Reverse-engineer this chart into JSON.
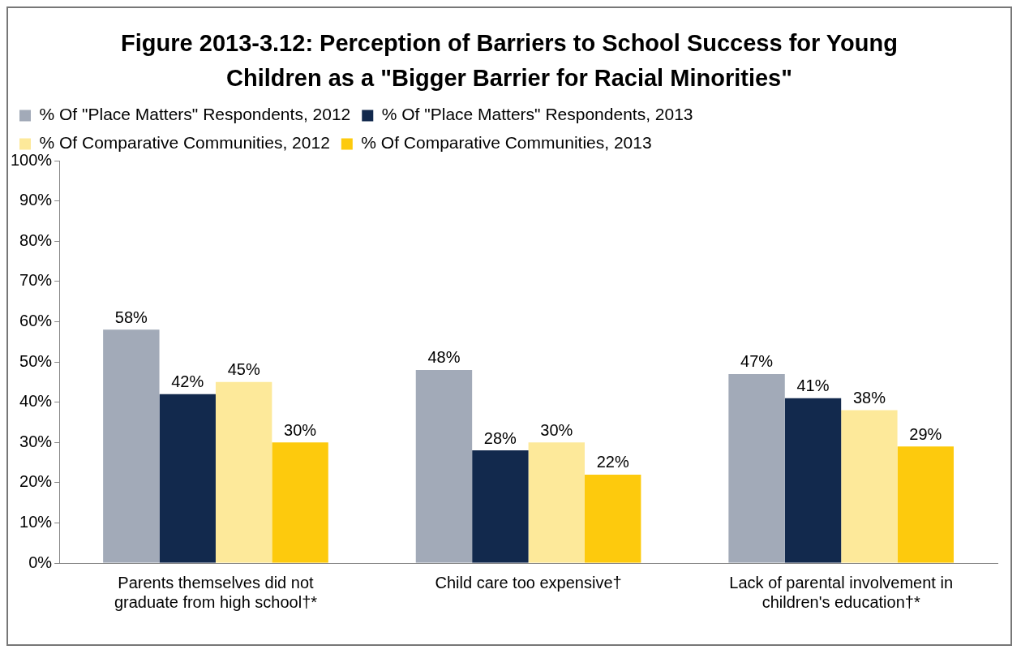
{
  "chart_data": {
    "type": "bar",
    "title": "Figure 2013-3.12: Perception of Barriers to School Success for Young Children as a \"Bigger Barrier for Racial Minorities\"",
    "categories": [
      "Parents themselves did not graduate from high school†*",
      "Child care too expensive†",
      "Lack of parental involvement in children's education†*"
    ],
    "series": [
      {
        "name": "% Of \"Place Matters\" Respondents, 2012",
        "color": "#a2aab8",
        "values": [
          58,
          48,
          47
        ],
        "value_labels": [
          "58%",
          "48%",
          "47%"
        ]
      },
      {
        "name": "% Of \"Place Matters\" Respondents, 2013",
        "color": "#12294d",
        "values": [
          42,
          28,
          41
        ],
        "value_labels": [
          "42%",
          "28%",
          "41%"
        ]
      },
      {
        "name": "% Of Comparative Communities, 2012",
        "color": "#fde99a",
        "values": [
          45,
          30,
          38
        ],
        "value_labels": [
          "45%",
          "30%",
          "38%"
        ]
      },
      {
        "name": "% Of Comparative Communities, 2013",
        "color": "#fdca0d",
        "values": [
          30,
          22,
          29
        ],
        "value_labels": [
          "30%",
          "22%",
          "29%"
        ]
      }
    ],
    "ylim": [
      0,
      100
    ],
    "yticks": [
      {
        "value": 0,
        "label": "0%"
      },
      {
        "value": 10,
        "label": "10%"
      },
      {
        "value": 20,
        "label": "20%"
      },
      {
        "value": 30,
        "label": "30%"
      },
      {
        "value": 40,
        "label": "40%"
      },
      {
        "value": 50,
        "label": "50%"
      },
      {
        "value": 60,
        "label": "60%"
      },
      {
        "value": 70,
        "label": "70%"
      },
      {
        "value": 80,
        "label": "80%"
      },
      {
        "value": 90,
        "label": "90%"
      },
      {
        "value": 100,
        "label": "100%"
      }
    ],
    "grid": false,
    "legend": "top"
  }
}
